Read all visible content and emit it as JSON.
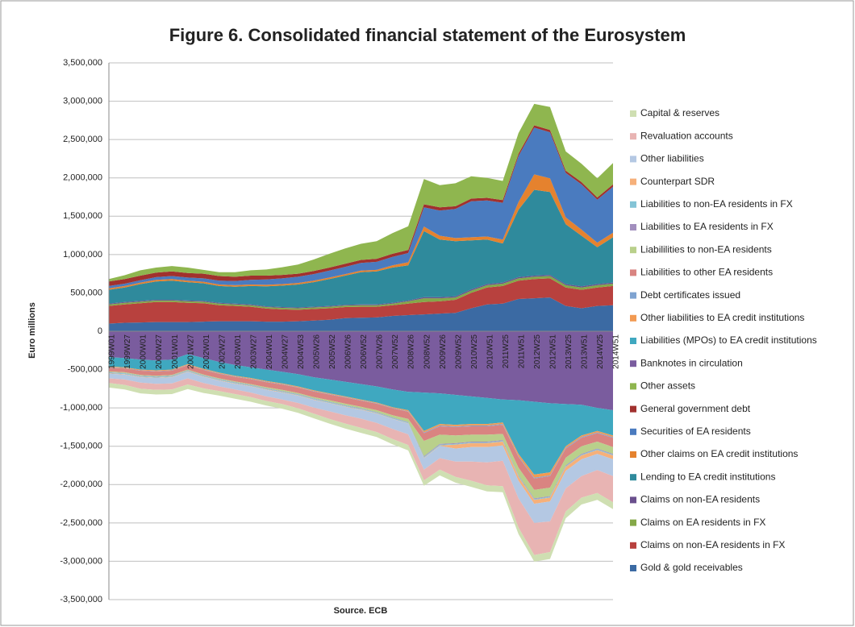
{
  "chart_data": {
    "type": "stacked_area",
    "title": "Figure 6. Consolidated financial statement of the Eurosystem",
    "y_label": "Euro millions",
    "x_label": "Source. ECB",
    "categories": [
      "1999W01",
      "1999W27",
      "2000W01",
      "2000W27",
      "2001W01",
      "2001W27",
      "2002W01",
      "2002W27",
      "2003W01",
      "2003W27",
      "2004W01",
      "2004W27",
      "2004W53",
      "2005W26",
      "2005W52",
      "2006W26",
      "2006W52",
      "2007W26",
      "2007W52",
      "2008W26",
      "2008W52",
      "2009W26",
      "2009W52",
      "2010W25",
      "2010W51",
      "2011W25",
      "2011W51",
      "2012W25",
      "2012W51",
      "2013W25",
      "2013W51",
      "2014W25",
      "2014W51"
    ],
    "ylim": [
      -3500000,
      3500000
    ],
    "yticks": [
      {
        "value": -3500000,
        "label": "-3,500,000"
      },
      {
        "value": -3000000,
        "label": "-3,000,000"
      },
      {
        "value": -2500000,
        "label": "-2,500,000"
      },
      {
        "value": -2000000,
        "label": "-2,000,000"
      },
      {
        "value": -1500000,
        "label": "-1,500,000"
      },
      {
        "value": -1000000,
        "label": "-1,000,000"
      },
      {
        "value": -500000,
        "label": "-500,000"
      },
      0,
      {
        "value": 500000,
        "label": "500,000"
      },
      {
        "value": 1000000,
        "label": "1,000,000"
      },
      {
        "value": 1500000,
        "label": "1,500,000"
      },
      {
        "value": 2000000,
        "label": "2,000,000"
      },
      {
        "value": 2500000,
        "label": "2,500,000"
      },
      {
        "value": 3000000,
        "label": "3,000,000"
      },
      {
        "value": 3500000,
        "label": "3,500,000"
      }
    ],
    "grid": true,
    "legend": "right",
    "series": [
      {
        "name": "Gold & gold receivables",
        "color": "#3b6aa3",
        "values": [
          100000,
          110000,
          115000,
          120000,
          120000,
          120000,
          125000,
          130000,
          130000,
          130000,
          125000,
          125000,
          130000,
          140000,
          150000,
          170000,
          175000,
          180000,
          200000,
          210000,
          220000,
          230000,
          240000,
          300000,
          350000,
          360000,
          420000,
          430000,
          440000,
          330000,
          300000,
          330000,
          340000
        ]
      },
      {
        "name": "Claims on non-EA residents in FX",
        "color": "#b8413e",
        "values": [
          230000,
          240000,
          250000,
          260000,
          260000,
          250000,
          240000,
          210000,
          200000,
          190000,
          170000,
          160000,
          150000,
          150000,
          150000,
          145000,
          145000,
          140000,
          140000,
          150000,
          160000,
          160000,
          170000,
          200000,
          220000,
          230000,
          240000,
          250000,
          250000,
          240000,
          240000,
          240000,
          250000
        ]
      },
      {
        "name": "Claims on EA residents in FX",
        "color": "#84a848",
        "values": [
          20000,
          20000,
          20000,
          20000,
          20000,
          20000,
          20000,
          20000,
          20000,
          20000,
          20000,
          20000,
          20000,
          20000,
          20000,
          20000,
          20000,
          20000,
          20000,
          30000,
          50000,
          40000,
          30000,
          30000,
          30000,
          30000,
          30000,
          30000,
          30000,
          30000,
          30000,
          30000,
          30000
        ]
      },
      {
        "name": "Claims on non-EA residents",
        "color": "#6a4f8d",
        "values": [
          10000,
          10000,
          10000,
          10000,
          10000,
          10000,
          10000,
          10000,
          10000,
          10000,
          10000,
          10000,
          10000,
          10000,
          10000,
          10000,
          10000,
          10000,
          10000,
          10000,
          15000,
          15000,
          15000,
          15000,
          15000,
          15000,
          15000,
          15000,
          15000,
          15000,
          15000,
          15000,
          15000
        ]
      },
      {
        "name": "Lending to EA credit institutions",
        "color": "#2f8a9c",
        "values": [
          180000,
          190000,
          220000,
          240000,
          250000,
          240000,
          230000,
          220000,
          220000,
          240000,
          260000,
          280000,
          300000,
          320000,
          350000,
          380000,
          420000,
          430000,
          460000,
          460000,
          860000,
          750000,
          720000,
          640000,
          580000,
          510000,
          880000,
          1120000,
          1080000,
          780000,
          660000,
          480000,
          590000
        ]
      },
      {
        "name": "Other claims on EA credit institutions",
        "color": "#e5822e",
        "values": [
          20000,
          20000,
          20000,
          20000,
          20000,
          20000,
          20000,
          20000,
          20000,
          20000,
          20000,
          20000,
          20000,
          20000,
          20000,
          20000,
          20000,
          20000,
          30000,
          40000,
          60000,
          50000,
          40000,
          40000,
          40000,
          50000,
          100000,
          200000,
          180000,
          90000,
          80000,
          60000,
          60000
        ]
      },
      {
        "name": "Securities of EA residents",
        "color": "#4a7bbf",
        "values": [
          30000,
          30000,
          30000,
          35000,
          40000,
          40000,
          45000,
          50000,
          55000,
          60000,
          70000,
          75000,
          80000,
          85000,
          90000,
          95000,
          100000,
          105000,
          110000,
          120000,
          250000,
          330000,
          380000,
          470000,
          470000,
          480000,
          600000,
          610000,
          600000,
          580000,
          590000,
          560000,
          600000
        ]
      },
      {
        "name": "General government debt",
        "color": "#a1312e",
        "values": [
          60000,
          60000,
          60000,
          60000,
          60000,
          60000,
          60000,
          60000,
          55000,
          55000,
          50000,
          45000,
          40000,
          40000,
          40000,
          40000,
          40000,
          40000,
          40000,
          40000,
          40000,
          40000,
          35000,
          35000,
          35000,
          35000,
          30000,
          30000,
          30000,
          30000,
          30000,
          30000,
          30000
        ]
      },
      {
        "name": "Other assets",
        "color": "#8fb64f",
        "values": [
          30000,
          50000,
          70000,
          65000,
          70000,
          70000,
          50000,
          50000,
          60000,
          70000,
          80000,
          100000,
          120000,
          150000,
          180000,
          200000,
          210000,
          230000,
          270000,
          310000,
          330000,
          290000,
          300000,
          290000,
          260000,
          250000,
          270000,
          280000,
          300000,
          250000,
          240000,
          250000,
          280000
        ]
      },
      {
        "name": "Banknotes in circulation",
        "color": "#7a5c9e",
        "values": [
          -340000,
          -350000,
          -370000,
          -380000,
          -370000,
          -300000,
          -350000,
          -400000,
          -440000,
          -470000,
          -500000,
          -530000,
          -560000,
          -600000,
          -630000,
          -660000,
          -690000,
          -720000,
          -760000,
          -790000,
          -800000,
          -810000,
          -830000,
          -850000,
          -870000,
          -890000,
          -900000,
          -920000,
          -940000,
          -950000,
          -960000,
          -1000000,
          -1030000
        ]
      },
      {
        "name": "Liabilities (MPOs) to EA credit institutions",
        "color": "#3fa8c0",
        "values": [
          -120000,
          -120000,
          -130000,
          -130000,
          -130000,
          -130000,
          -140000,
          -140000,
          -140000,
          -140000,
          -150000,
          -150000,
          -160000,
          -170000,
          -180000,
          -190000,
          -200000,
          -210000,
          -230000,
          -240000,
          -500000,
          -400000,
          -390000,
          -360000,
          -340000,
          -300000,
          -700000,
          -950000,
          -900000,
          -550000,
          -400000,
          -300000,
          -330000
        ]
      },
      {
        "name": "Other liabilities to EA credit institutions",
        "color": "#f29a52",
        "values": [
          -10000,
          -10000,
          -10000,
          -10000,
          -10000,
          -10000,
          -10000,
          -10000,
          -10000,
          -10000,
          -10000,
          -10000,
          -10000,
          -10000,
          -10000,
          -10000,
          -10000,
          -10000,
          -10000,
          -15000,
          -20000,
          -20000,
          -20000,
          -20000,
          -20000,
          -20000,
          -30000,
          -40000,
          -40000,
          -20000,
          -20000,
          -20000,
          -20000
        ]
      },
      {
        "name": "Debt certificates issued",
        "color": "#7fa3d1",
        "values": [
          -5000,
          -5000,
          -5000,
          -5000,
          -5000,
          -5000,
          -5000,
          -5000,
          -5000,
          -5000,
          -5000,
          -5000,
          -5000,
          -5000,
          -5000,
          -5000,
          -5000,
          -5000,
          -5000,
          -5000,
          -10000,
          -10000,
          -10000,
          -10000,
          -10000,
          -10000,
          -10000,
          -10000,
          -10000,
          -10000,
          -10000,
          -10000,
          -10000
        ]
      },
      {
        "name": "Liabilities to other EA residents",
        "color": "#d98481",
        "values": [
          -50000,
          -50000,
          -55000,
          -55000,
          -55000,
          -55000,
          -60000,
          -60000,
          -60000,
          -65000,
          -65000,
          -70000,
          -70000,
          -75000,
          -75000,
          -80000,
          -80000,
          -85000,
          -90000,
          -95000,
          -100000,
          -110000,
          -110000,
          -110000,
          -110000,
          -120000,
          -140000,
          -150000,
          -150000,
          -120000,
          -110000,
          -110000,
          -120000
        ]
      },
      {
        "name": "Liabililities to non-EA residents",
        "color": "#b9d08b",
        "values": [
          -10000,
          -10000,
          -10000,
          -10000,
          -10000,
          -10000,
          -10000,
          -10000,
          -10000,
          -10000,
          -15000,
          -15000,
          -15000,
          -15000,
          -20000,
          -20000,
          -20000,
          -25000,
          -30000,
          -40000,
          -200000,
          -120000,
          -100000,
          -90000,
          -90000,
          -80000,
          -100000,
          -110000,
          -110000,
          -100000,
          -100000,
          -90000,
          -90000
        ]
      },
      {
        "name": "Liabilities to EA residents in FX",
        "color": "#a28fbe",
        "values": [
          -5000,
          -5000,
          -5000,
          -5000,
          -5000,
          -5000,
          -5000,
          -5000,
          -5000,
          -5000,
          -5000,
          -5000,
          -5000,
          -5000,
          -5000,
          -5000,
          -5000,
          -5000,
          -5000,
          -5000,
          -10000,
          -10000,
          -10000,
          -10000,
          -10000,
          -10000,
          -10000,
          -10000,
          -10000,
          -10000,
          -10000,
          -10000,
          -10000
        ]
      },
      {
        "name": "Liabilities to non-EA residents in FX",
        "color": "#84c4d6",
        "values": [
          -10000,
          -10000,
          -10000,
          -10000,
          -10000,
          -10000,
          -10000,
          -10000,
          -10000,
          -10000,
          -10000,
          -10000,
          -10000,
          -10000,
          -10000,
          -10000,
          -10000,
          -10000,
          -10000,
          -10000,
          -10000,
          -10000,
          -10000,
          -10000,
          -10000,
          -10000,
          -10000,
          -10000,
          -10000,
          -10000,
          -10000,
          -10000,
          -10000
        ]
      },
      {
        "name": "Counterpart SDR",
        "color": "#f6b07a",
        "values": [
          -5000,
          -5000,
          -5000,
          -5000,
          -5000,
          -5000,
          -5000,
          -5000,
          -5000,
          -5000,
          -5000,
          -5000,
          -5000,
          -5000,
          -5000,
          -5000,
          -5000,
          -5000,
          -5000,
          -5000,
          -5000,
          -5000,
          -50000,
          -50000,
          -50000,
          -50000,
          -50000,
          -50000,
          -50000,
          -50000,
          -50000,
          -50000,
          -50000
        ]
      },
      {
        "name": "Other liabilities",
        "color": "#b4c8e3",
        "values": [
          -60000,
          -65000,
          -70000,
          -75000,
          -80000,
          -85000,
          -80000,
          -75000,
          -75000,
          -80000,
          -85000,
          -90000,
          -95000,
          -100000,
          -105000,
          -110000,
          -115000,
          -120000,
          -130000,
          -140000,
          -150000,
          -160000,
          -170000,
          -190000,
          -200000,
          -200000,
          -230000,
          -250000,
          -260000,
          -230000,
          -220000,
          -210000,
          -220000
        ]
      },
      {
        "name": "Revaluation accounts",
        "color": "#e8b4b3",
        "values": [
          -60000,
          -70000,
          -80000,
          -80000,
          -80000,
          -80000,
          -70000,
          -60000,
          -60000,
          -60000,
          -60000,
          -60000,
          -70000,
          -80000,
          -100000,
          -110000,
          -120000,
          -120000,
          -130000,
          -140000,
          -140000,
          -150000,
          -200000,
          -250000,
          -300000,
          -330000,
          -380000,
          -420000,
          -400000,
          -300000,
          -280000,
          -300000,
          -340000
        ]
      },
      {
        "name": "Capital & reserves",
        "color": "#cfdfb2",
        "values": [
          -60000,
          -60000,
          -60000,
          -60000,
          -60000,
          -60000,
          -60000,
          -60000,
          -60000,
          -60000,
          -60000,
          -60000,
          -60000,
          -60000,
          -60000,
          -65000,
          -65000,
          -65000,
          -70000,
          -70000,
          -70000,
          -75000,
          -75000,
          -80000,
          -80000,
          -80000,
          -85000,
          -85000,
          -90000,
          -90000,
          -90000,
          -90000,
          -90000
        ]
      }
    ]
  }
}
